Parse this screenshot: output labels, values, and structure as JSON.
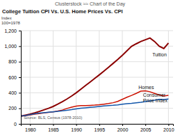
{
  "chart_data": {
    "type": "line",
    "title": "College Tuition CPI Vs. U.S. Home Prices Vs. CPI",
    "subtitle": "Clusterstock ≈≈ Chart of the Day",
    "y_label": "Index\n100=1978",
    "source": "Source: BLS, Census (1978-2010)",
    "x": [
      1978,
      1979,
      1980,
      1981,
      1982,
      1983,
      1984,
      1985,
      1986,
      1987,
      1988,
      1989,
      1990,
      1991,
      1992,
      1993,
      1994,
      1995,
      1996,
      1997,
      1998,
      1999,
      2000,
      2001,
      2002,
      2003,
      2004,
      2005,
      2006,
      2007,
      2008,
      2009,
      2010
    ],
    "series": [
      {
        "color": "#8b0000",
        "values": [
          100,
          112,
          125,
          141,
          160,
          180,
          200,
          224,
          254,
          286,
          320,
          358,
          400,
          446,
          492,
          538,
          584,
          630,
          678,
          728,
          778,
          828,
          882,
          940,
          998,
          1030,
          1060,
          1082,
          1105,
          1060,
          1000,
          970,
          1040
        ]
      },
      {
        "color": "#cc1100",
        "values": [
          100,
          106,
          115,
          126,
          133,
          140,
          147,
          155,
          165,
          178,
          198,
          215,
          228,
          234,
          236,
          238,
          241,
          246,
          253,
          261,
          272,
          289,
          316,
          342,
          366,
          392,
          420,
          425,
          413,
          392,
          372,
          358,
          368
        ]
      },
      {
        "color": "#1155aa",
        "values": [
          100,
          107,
          118,
          130,
          138,
          143,
          149,
          155,
          162,
          168,
          175,
          183,
          193,
          201,
          207,
          213,
          218,
          224,
          231,
          236,
          239,
          244,
          252,
          260,
          264,
          270,
          277,
          286,
          295,
          304,
          316,
          314,
          320
        ]
      }
    ],
    "xlim": [
      1978,
      2011
    ],
    "xticks": [
      1980,
      1985,
      1990,
      1995,
      2000,
      2005,
      2010
    ],
    "ylim": [
      0,
      1200
    ],
    "yticks": [
      0,
      200,
      400,
      600,
      800,
      {
        "value": 1000,
        "label": "1,000"
      },
      {
        "value": 1200,
        "label": "1,200"
      }
    ],
    "grid": true,
    "annotations": [
      {
        "text": "Tuition",
        "x": 2006.5,
        "y": 870
      },
      {
        "text": "Homes",
        "x": 2003.5,
        "y": 450
      },
      {
        "text": "Consumer\nPrice Index",
        "x": 2004.5,
        "y": 280
      }
    ]
  }
}
